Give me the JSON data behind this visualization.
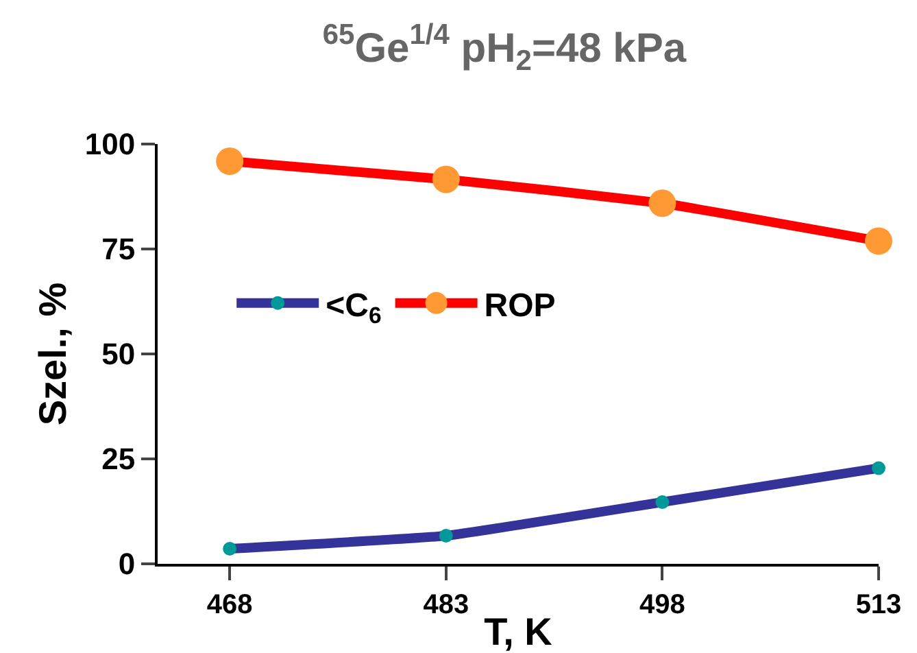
{
  "chart_data": {
    "type": "line",
    "title": "$^{65}$Ge$^{1/4}$ pH$_{2}$=48 kPa",
    "xlabel": "T, K",
    "ylabel": "Szel., %",
    "x": [
      468,
      483,
      498,
      513
    ],
    "series": [
      {
        "name": "<C$_{6}$",
        "color": "#333399",
        "colors": [
          "#009999",
          "#009999",
          "#009999",
          "#009999"
        ],
        "values": [
          3.6,
          6.7,
          14.7,
          22.8
        ]
      },
      {
        "name": "ROP",
        "color": "#ff0000",
        "colors": [
          "#ff9933",
          "#ff9933",
          "#ff9933",
          "#ff9933"
        ],
        "values": [
          95.9,
          91.6,
          85.9,
          76.9
        ]
      }
    ],
    "xlim": [
      463,
      513
    ],
    "xticks": [
      468,
      483,
      498,
      513
    ],
    "ylim": [
      0,
      100
    ],
    "yticks": [
      0,
      25,
      50,
      75,
      100
    ],
    "legend": "left",
    "marker": "circle",
    "line_style": "solid"
  }
}
